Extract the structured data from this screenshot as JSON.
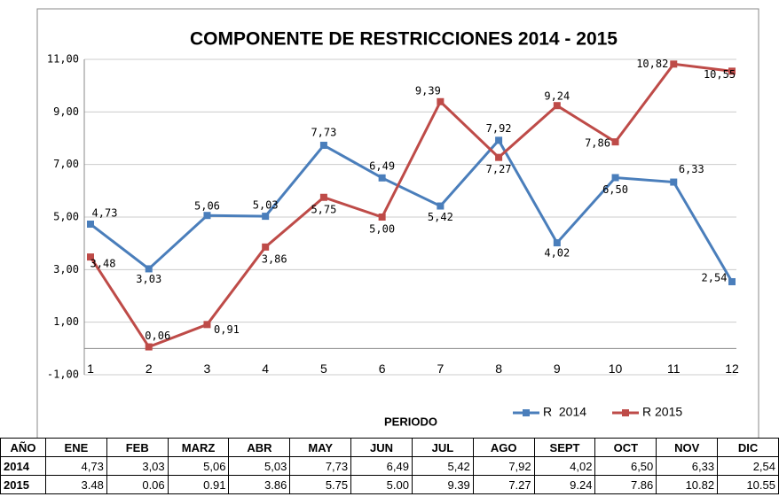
{
  "chart_data": {
    "type": "line",
    "title": "COMPONENTE  DE  RESTRICCIONES   2014 - 2015",
    "x_label": "PERIODO",
    "categories": [
      "1",
      "2",
      "3",
      "4",
      "5",
      "6",
      "7",
      "8",
      "9",
      "10",
      "11",
      "12"
    ],
    "series": [
      {
        "name": "R  2014",
        "color": "#4a7ebb",
        "values": [
          4.73,
          3.03,
          5.06,
          5.03,
          7.73,
          6.49,
          5.42,
          7.92,
          4.02,
          6.5,
          6.33,
          2.54
        ],
        "value_labels": [
          "4,73",
          "3,03",
          "5,06",
          "5,03",
          "7,73",
          "6,49",
          "5,42",
          "7,92",
          "4,02",
          "6,50",
          "6,33",
          "2,54"
        ]
      },
      {
        "name": "R 2015",
        "color": "#be4b48",
        "values": [
          3.48,
          0.06,
          0.91,
          3.86,
          5.75,
          5.0,
          9.39,
          7.27,
          9.24,
          7.86,
          10.82,
          10.55
        ],
        "value_labels": [
          "3,48",
          "0,06",
          "0,91",
          "3,86",
          "5,75",
          "5,00",
          "9,39",
          "7,27",
          "9,24",
          "7,86",
          "10,82",
          "10,55"
        ]
      }
    ],
    "ylim": [
      -1,
      11
    ],
    "yticks": [
      {
        "value": -1,
        "label": "-1,00"
      },
      {
        "value": 1,
        "label": "1,00"
      },
      {
        "value": 3,
        "label": "3,00"
      },
      {
        "value": 5,
        "label": "5,00"
      },
      {
        "value": 7,
        "label": "7,00"
      },
      {
        "value": 9,
        "label": "9,00"
      },
      {
        "value": 11,
        "label": "11,00"
      }
    ],
    "grid": true,
    "legend": "bottom-right"
  },
  "table": {
    "header": [
      "AÑO",
      "ENE",
      "FEB",
      "MARZ",
      "ABR",
      "MAY",
      "JUN",
      "JUL",
      "AGO",
      "SEPT",
      "OCT",
      "NOV",
      "DIC"
    ],
    "rows": [
      [
        "2014",
        "4,73",
        "3,03",
        "5,06",
        "5,03",
        "7,73",
        "6,49",
        "5,42",
        "7,92",
        "4,02",
        "6,50",
        "6,33",
        "2,54"
      ],
      [
        "2015",
        "3.48",
        "0.06",
        "0.91",
        "3.86",
        "5.75",
        "5.00",
        "9.39",
        "7.27",
        "9.24",
        "7.86",
        "10.82",
        "10.55"
      ]
    ]
  }
}
